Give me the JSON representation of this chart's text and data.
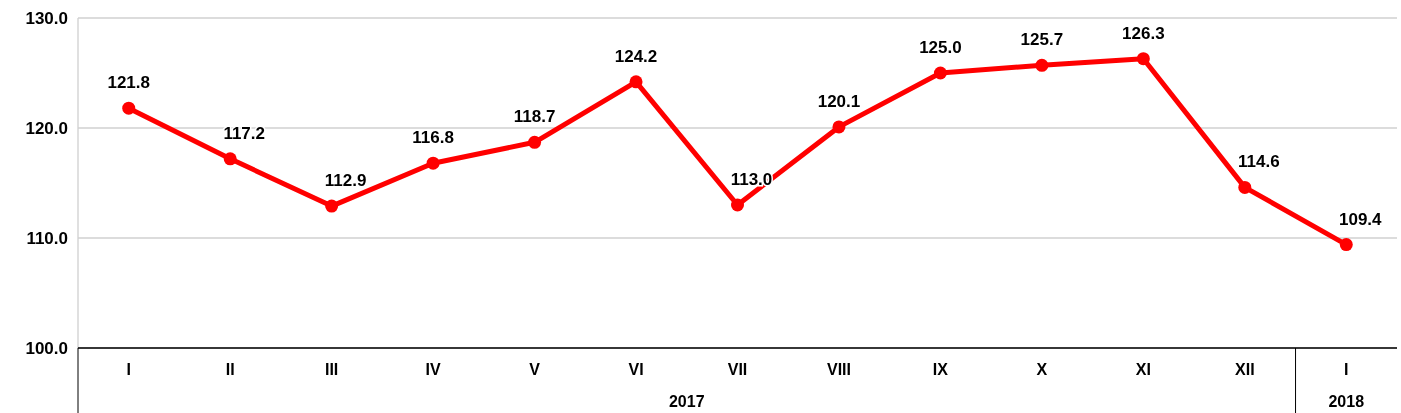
{
  "chart_data": {
    "type": "line",
    "categories": [
      "I",
      "II",
      "III",
      "IV",
      "V",
      "VI",
      "VII",
      "VIII",
      "IX",
      "X",
      "XI",
      "XII",
      "I"
    ],
    "series": [
      {
        "color": "#ff0000",
        "values": [
          121.8,
          117.2,
          112.9,
          116.8,
          118.7,
          124.2,
          113.0,
          120.1,
          125.0,
          125.7,
          126.3,
          114.6,
          109.4
        ],
        "value_labels": [
          "121.8",
          "117.2",
          "112.9",
          "116.8",
          "118.7",
          "124.2",
          "113.0",
          "120.1",
          "125.0",
          "125.7",
          "126.3",
          "114.6",
          "109.4"
        ]
      }
    ],
    "ylim": [
      100,
      130
    ],
    "yticks": [
      {
        "value": 100,
        "label": "100.0"
      },
      {
        "value": 110,
        "label": "110.0"
      },
      {
        "value": 120,
        "label": "120.0"
      },
      {
        "value": 130,
        "label": "130.0"
      }
    ],
    "grid": "y",
    "marker": "circle",
    "line_style": "solid",
    "annotations": [
      "2017",
      "2018"
    ]
  }
}
